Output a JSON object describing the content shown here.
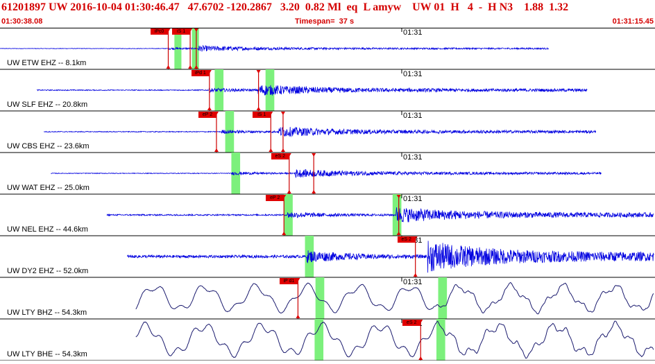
{
  "header": {
    "main": "61201897 UW 2016-10-04 01:30:46.47   47.6702 -120.2867   3.20  0.82 Ml  eq  L amyw    UW 01  H   4  -  H N3    1.88  1.32",
    "start_time": "01:30:38.08",
    "timespan": "Timespan=  37 s",
    "end_time": "01:31:15.45"
  },
  "colors": {
    "header_text": "#d40000",
    "waveform_seismic": "#0000e0",
    "waveform_broadband": "#1a1a6e",
    "pick_tag": "#e00000",
    "pick_line": "#cc0000",
    "window_band": "#7cf07c",
    "grid": "#000000"
  },
  "timeline": {
    "start_s": 0,
    "end_s": 37.37,
    "tick_s": 22.92,
    "tick_label": "01:31"
  },
  "traces": [
    {
      "label": "UW ETW EHZ -- 8.1km",
      "kind": "seismic",
      "amp": 0.06,
      "start_s": 0,
      "end_s": 31.3,
      "p_s": 9.6,
      "s_s": 11.3,
      "windows_s": [
        [
          9.95,
          10.35
        ],
        [
          10.95,
          11.35
        ]
      ],
      "picks": [
        {
          "label": "iPc0",
          "t": 9.6
        },
        {
          "label": "iS 1",
          "t": 10.85
        },
        {
          "label": "",
          "t": 11.2
        }
      ]
    },
    {
      "label": "UW SLF EHZ -- 20.8km",
      "kind": "seismic",
      "amp": 0.12,
      "start_s": 2.1,
      "end_s": 33.5,
      "p_s": 11.9,
      "s_s": 14.7,
      "windows_s": [
        [
          12.25,
          12.75
        ],
        [
          15.15,
          15.65
        ]
      ],
      "picks": [
        {
          "label": "iPd 1",
          "t": 11.95
        },
        {
          "label": "",
          "t": 14.75
        }
      ]
    },
    {
      "label": "UW CBS EHZ -- 23.6km",
      "kind": "seismic",
      "amp": 0.11,
      "start_s": 2.5,
      "end_s": 34.0,
      "p_s": 12.6,
      "s_s": 15.9,
      "windows_s": [
        [
          12.85,
          13.35
        ]
      ],
      "picks": [
        {
          "label": "eP 2",
          "t": 12.35
        },
        {
          "label": "iS 1",
          "t": 15.45
        },
        {
          "label": "",
          "t": 16.15
        }
      ]
    },
    {
      "label": "UW WAT EHZ -- 25.0km",
      "kind": "seismic",
      "amp": 0.09,
      "start_s": 2.9,
      "end_s": 34.3,
      "p_s": 13.2,
      "s_s": 16.8,
      "windows_s": [
        [
          13.2,
          13.7
        ]
      ],
      "picks": [
        {
          "label": "eS 2",
          "t": 16.5
        },
        {
          "label": "",
          "t": 17.9
        }
      ]
    },
    {
      "label": "UW NEL EHZ -- 44.6km",
      "kind": "seismic",
      "amp": 0.18,
      "start_s": 6.1,
      "end_s": 37.3,
      "p_s": 16.4,
      "s_s": 22.6,
      "windows_s": [
        [
          16.2,
          16.7
        ],
        [
          22.4,
          22.9
        ]
      ],
      "picks": [
        {
          "label": "eP 2",
          "t": 16.2
        },
        {
          "label": "",
          "t": 22.75
        }
      ]
    },
    {
      "label": "UW DY2 EHZ -- 52.0km",
      "kind": "seismic",
      "amp": 0.35,
      "start_s": 7.25,
      "end_s": 37.3,
      "p_s": 17.5,
      "s_s": 24.4,
      "windows_s": [
        [
          17.4,
          17.9
        ]
      ],
      "picks": [
        {
          "label": "eS 2",
          "t": 23.7
        }
      ]
    },
    {
      "label": "UW LTY BHZ -- 54.3km",
      "kind": "broadband",
      "amp": 0.72,
      "start_s": 7.75,
      "end_s": 37.3,
      "p_s": 18.2,
      "s_s": 24.9,
      "windows_s": [
        [
          18.0,
          18.5
        ],
        [
          25.0,
          25.5
        ]
      ],
      "picks": [
        {
          "label": "iP d1",
          "t": 17.0
        }
      ]
    },
    {
      "label": "UW LTY BHE -- 54.3km",
      "kind": "broadband",
      "amp": 0.85,
      "start_s": 7.75,
      "end_s": 37.3,
      "p_s": 18.2,
      "s_s": 24.9,
      "windows_s": [
        [
          17.95,
          18.45
        ],
        [
          24.9,
          25.4
        ]
      ],
      "picks": [
        {
          "label": "eS 2",
          "t": 24.0
        }
      ]
    }
  ]
}
